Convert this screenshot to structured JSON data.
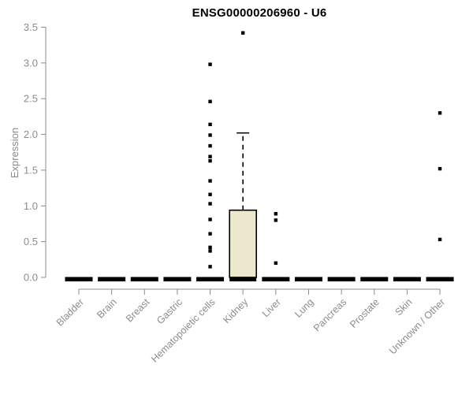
{
  "chart_data": {
    "type": "boxplot",
    "title": "ENSG00000206960 - U6",
    "ylabel": "Expression",
    "ylim": [
      0,
      3.5
    ],
    "yticks": [
      "0.0",
      "0.5",
      "1.0",
      "1.5",
      "2.0",
      "2.5",
      "3.0",
      "3.5"
    ],
    "grid": false,
    "legend": "none",
    "categories": [
      "Bladder",
      "Brain",
      "Breast",
      "Gastric",
      "Hematopoietic cells",
      "Kidney",
      "Liver",
      "Lung",
      "Pancreas",
      "Prostate",
      "Skin",
      "Unknown / Other"
    ],
    "boxes": [
      {
        "category": "Bladder",
        "median": 0.02,
        "q1": 0.0,
        "q3": 0.04,
        "whisker_low": 0.0,
        "whisker_high": 0.04,
        "outliers": []
      },
      {
        "category": "Brain",
        "median": 0.02,
        "q1": 0.0,
        "q3": 0.04,
        "whisker_low": 0.0,
        "whisker_high": 0.04,
        "outliers": []
      },
      {
        "category": "Breast",
        "median": 0.02,
        "q1": 0.0,
        "q3": 0.04,
        "whisker_low": 0.0,
        "whisker_high": 0.04,
        "outliers": []
      },
      {
        "category": "Gastric",
        "median": 0.02,
        "q1": 0.0,
        "q3": 0.04,
        "whisker_low": 0.0,
        "whisker_high": 0.04,
        "outliers": []
      },
      {
        "category": "Hematopoietic cells",
        "median": 0.02,
        "q1": 0.0,
        "q3": 0.04,
        "whisker_low": 0.0,
        "whisker_high": 0.04,
        "outliers": [
          2.98,
          2.46,
          2.14,
          1.99,
          1.84,
          1.69,
          1.63,
          1.35,
          1.16,
          1.03,
          0.81,
          0.61,
          0.42,
          0.37,
          0.15
        ]
      },
      {
        "category": "Kidney",
        "median": 0.02,
        "q1": 0.0,
        "q3": 0.94,
        "whisker_low": 0.0,
        "whisker_high": 2.02,
        "outliers": [
          3.42
        ]
      },
      {
        "category": "Liver",
        "median": 0.02,
        "q1": 0.0,
        "q3": 0.04,
        "whisker_low": 0.0,
        "whisker_high": 0.04,
        "outliers": [
          0.89,
          0.8,
          0.2
        ]
      },
      {
        "category": "Lung",
        "median": 0.02,
        "q1": 0.0,
        "q3": 0.04,
        "whisker_low": 0.0,
        "whisker_high": 0.04,
        "outliers": []
      },
      {
        "category": "Pancreas",
        "median": 0.02,
        "q1": 0.0,
        "q3": 0.04,
        "whisker_low": 0.0,
        "whisker_high": 0.04,
        "outliers": []
      },
      {
        "category": "Prostate",
        "median": 0.02,
        "q1": 0.0,
        "q3": 0.04,
        "whisker_low": 0.0,
        "whisker_high": 0.04,
        "outliers": []
      },
      {
        "category": "Skin",
        "median": 0.02,
        "q1": 0.0,
        "q3": 0.04,
        "whisker_low": 0.0,
        "whisker_high": 0.04,
        "outliers": []
      },
      {
        "category": "Unknown / Other",
        "median": 0.02,
        "q1": 0.0,
        "q3": 0.04,
        "whisker_low": 0.0,
        "whisker_high": 0.04,
        "outliers": [
          2.3,
          1.52,
          0.53
        ]
      }
    ],
    "colors": {
      "box_fill": "#ece8cd",
      "box_border": "#000000",
      "median": "#000000",
      "outlier": "#000000",
      "whisker": "#000000",
      "axis": "#8c8c8c",
      "tick_labels": "#8c8c8c",
      "title": "#000000",
      "background": "#ffffff"
    }
  }
}
